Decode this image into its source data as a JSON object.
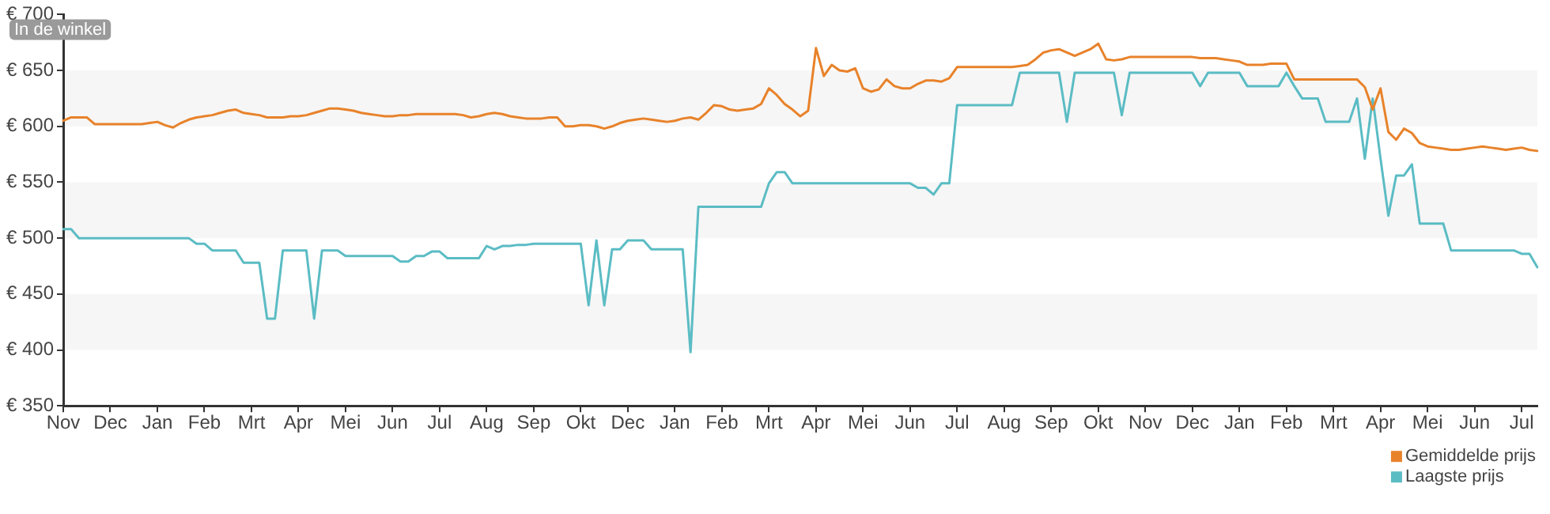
{
  "chart_data": {
    "type": "line",
    "annotations": [
      "In de winkel"
    ],
    "categories": [
      "Nov",
      null,
      null,
      null,
      null,
      null,
      "Dec",
      null,
      null,
      null,
      null,
      null,
      "Jan",
      null,
      null,
      null,
      null,
      null,
      "Feb",
      null,
      null,
      null,
      null,
      null,
      "Mrt",
      null,
      null,
      null,
      null,
      null,
      "Apr",
      null,
      null,
      null,
      null,
      null,
      "Mei",
      null,
      null,
      null,
      null,
      null,
      "Jun",
      null,
      null,
      null,
      null,
      null,
      "Jul",
      null,
      null,
      null,
      null,
      null,
      "Aug",
      null,
      null,
      null,
      null,
      null,
      "Sep",
      null,
      null,
      null,
      null,
      null,
      "Okt",
      null,
      null,
      null,
      null,
      null,
      "Dec",
      null,
      null,
      null,
      null,
      null,
      "Jan",
      null,
      null,
      null,
      null,
      null,
      "Feb",
      null,
      null,
      null,
      null,
      null,
      "Mrt",
      null,
      null,
      null,
      null,
      null,
      "Apr",
      null,
      null,
      null,
      null,
      null,
      "Mei",
      null,
      null,
      null,
      null,
      null,
      "Jun",
      null,
      null,
      null,
      null,
      null,
      "Jul",
      null,
      null,
      null,
      null,
      null,
      "Aug",
      null,
      null,
      null,
      null,
      null,
      "Sep",
      null,
      null,
      null,
      null,
      null,
      "Okt",
      null,
      null,
      null,
      null,
      null,
      "Nov",
      null,
      null,
      null,
      null,
      null,
      "Dec",
      null,
      null,
      null,
      null,
      null,
      "Jan",
      null,
      null,
      null,
      null,
      null,
      "Feb",
      null,
      null,
      null,
      null,
      null,
      "Mrt",
      null,
      null,
      null,
      null,
      null,
      "Apr",
      null,
      null,
      null,
      null,
      null,
      "Mei",
      null,
      null,
      null,
      null,
      null,
      "Jun",
      null,
      null,
      null,
      null,
      null,
      "Jul",
      null,
      null
    ],
    "series": [
      {
        "name": "Gemiddelde prijs",
        "color": "#e8822a",
        "values": [
          605,
          608,
          608,
          608,
          602,
          602,
          602,
          602,
          602,
          602,
          602,
          603,
          604,
          601,
          599,
          603,
          606,
          608,
          609,
          610,
          612,
          614,
          615,
          612,
          611,
          610,
          608,
          608,
          608,
          609,
          609,
          610,
          612,
          614,
          616,
          616,
          615,
          614,
          612,
          611,
          610,
          609,
          609,
          610,
          610,
          611,
          611,
          611,
          611,
          611,
          611,
          610,
          608,
          609,
          611,
          612,
          611,
          609,
          608,
          607,
          607,
          607,
          608,
          608,
          600,
          600,
          601,
          601,
          600,
          598,
          600,
          603,
          605,
          606,
          607,
          606,
          605,
          604,
          605,
          607,
          608,
          606,
          612,
          619,
          618,
          615,
          614,
          615,
          616,
          620,
          634,
          628,
          620,
          615,
          609,
          614,
          670,
          645,
          655,
          650,
          649,
          652,
          634,
          631,
          633,
          642,
          636,
          634,
          634,
          638,
          641,
          641,
          640,
          643,
          653,
          653,
          653,
          653,
          653,
          653,
          653,
          653,
          654,
          655,
          660,
          666,
          668,
          669,
          666,
          663,
          666,
          669,
          674,
          660,
          659,
          660,
          662,
          662,
          662,
          662,
          662,
          662,
          662,
          662,
          662,
          661,
          661,
          661,
          660,
          659,
          658,
          655,
          655,
          655,
          656,
          656,
          656,
          642,
          642,
          642,
          642,
          642,
          642,
          642,
          642,
          642,
          635,
          615,
          634,
          595,
          588,
          598,
          594,
          585,
          582,
          581,
          580,
          579,
          579,
          580,
          581,
          582,
          581,
          580,
          579,
          580,
          581,
          579,
          578
        ]
      },
      {
        "name": "Laagste prijs",
        "color": "#5bbcc4",
        "values": [
          508,
          508,
          500,
          500,
          500,
          500,
          500,
          500,
          500,
          500,
          500,
          500,
          500,
          500,
          500,
          500,
          500,
          495,
          495,
          489,
          489,
          489,
          489,
          478,
          478,
          478,
          428,
          428,
          489,
          489,
          489,
          489,
          428,
          489,
          489,
          489,
          484,
          484,
          484,
          484,
          484,
          484,
          484,
          479,
          479,
          484,
          484,
          488,
          488,
          482,
          482,
          482,
          482,
          482,
          493,
          490,
          493,
          493,
          494,
          494,
          495,
          495,
          495,
          495,
          495,
          495,
          495,
          440,
          498,
          440,
          490,
          490,
          498,
          498,
          498,
          490,
          490,
          490,
          490,
          490,
          398,
          528,
          528,
          528,
          528,
          528,
          528,
          528,
          528,
          528,
          549,
          559,
          559,
          549,
          549,
          549,
          549,
          549,
          549,
          549,
          549,
          549,
          549,
          549,
          549,
          549,
          549,
          549,
          549,
          545,
          545,
          539,
          549,
          549,
          619,
          619,
          619,
          619,
          619,
          619,
          619,
          619,
          648,
          648,
          648,
          648,
          648,
          648,
          604,
          648,
          648,
          648,
          648,
          648,
          648,
          610,
          648,
          648,
          648,
          648,
          648,
          648,
          648,
          648,
          648,
          636,
          648,
          648,
          648,
          648,
          648,
          636,
          636,
          636,
          636,
          636,
          648,
          636,
          625,
          625,
          625,
          604,
          604,
          604,
          604,
          625,
          571,
          625,
          571,
          520,
          556,
          556,
          566,
          513,
          513,
          513,
          513,
          489,
          489,
          489,
          489,
          489,
          489,
          489,
          489,
          489,
          486,
          486,
          474
        ]
      }
    ],
    "ylim": [
      350,
      700
    ],
    "yticks": [
      {
        "value": 350,
        "label": "€ 350"
      },
      {
        "value": 400,
        "label": "€ 400"
      },
      {
        "value": 450,
        "label": "€ 450"
      },
      {
        "value": 500,
        "label": "€ 500"
      },
      {
        "value": 550,
        "label": "€ 550"
      },
      {
        "value": 600,
        "label": "€ 600"
      },
      {
        "value": 650,
        "label": "€ 650"
      },
      {
        "value": 700,
        "label": "€ 700"
      }
    ],
    "bands": [
      {
        "axis": "y",
        "from": 600,
        "to": 650,
        "color": "#f6f6f6"
      },
      {
        "axis": "y",
        "from": 500,
        "to": 550,
        "color": "#f6f6f6"
      },
      {
        "axis": "y",
        "from": 400,
        "to": 450,
        "color": "#f6f6f6"
      }
    ],
    "legend": "bottom right",
    "marker": "none",
    "line_style": "solid"
  }
}
